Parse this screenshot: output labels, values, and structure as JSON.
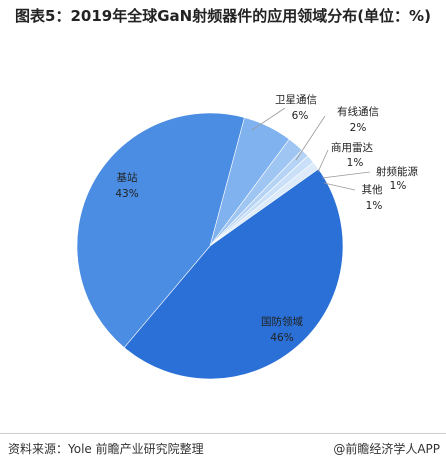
{
  "chart_data": {
    "type": "pie",
    "title": "图表5：2019年全球GaN射频器件的应用领域分布(单位：%)",
    "categories": [
      "卫星通信",
      "有线通信",
      "商用雷达",
      "射频能源",
      "其他",
      "国防领域",
      "基站"
    ],
    "values": [
      6,
      2,
      1,
      1,
      1,
      46,
      43
    ],
    "value_labels": [
      "6%",
      "2%",
      "1%",
      "1%",
      "1%",
      "46%",
      "43%"
    ],
    "colors": [
      "#7fb2ee",
      "#9fc5f2",
      "#b5d3f5",
      "#c9e0f8",
      "#dceafa",
      "#2a70d6",
      "#4b8de2"
    ],
    "source": "资料来源：Yole 前瞻产业研究院整理",
    "watermark": "@前瞻经济学人APP"
  }
}
